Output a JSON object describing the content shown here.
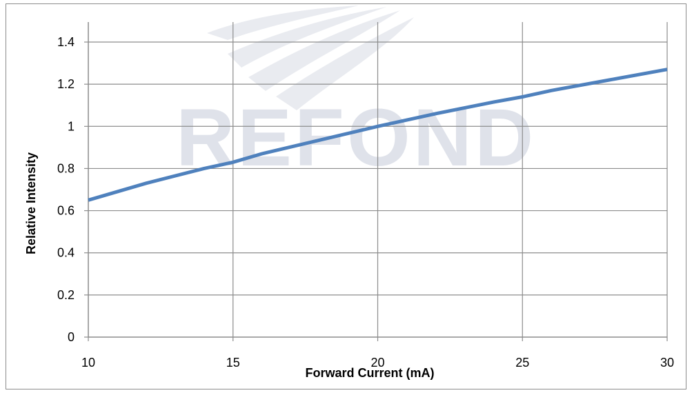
{
  "watermark": {
    "text": "REFOND"
  },
  "chart_data": {
    "type": "line",
    "xlabel": "Forward Current (mA)",
    "ylabel": "Relative Intensity",
    "xlim": [
      10,
      30
    ],
    "ylim": [
      0,
      1.5
    ],
    "x_ticks": [
      "10",
      "15",
      "20",
      "25",
      "30"
    ],
    "y_ticks": [
      "0",
      "0.2",
      "0.4",
      "0.6",
      "0.8",
      "1",
      "1.2",
      "1.4"
    ],
    "grid": true,
    "legend": "none",
    "series": [
      {
        "color": "#4f81bd",
        "x": [
          10,
          12,
          14,
          15,
          16,
          18,
          20,
          22,
          24,
          25,
          26,
          28,
          30
        ],
        "y": [
          0.65,
          0.73,
          0.8,
          0.83,
          0.87,
          0.935,
          1.0,
          1.06,
          1.115,
          1.14,
          1.17,
          1.22,
          1.27
        ]
      }
    ]
  }
}
